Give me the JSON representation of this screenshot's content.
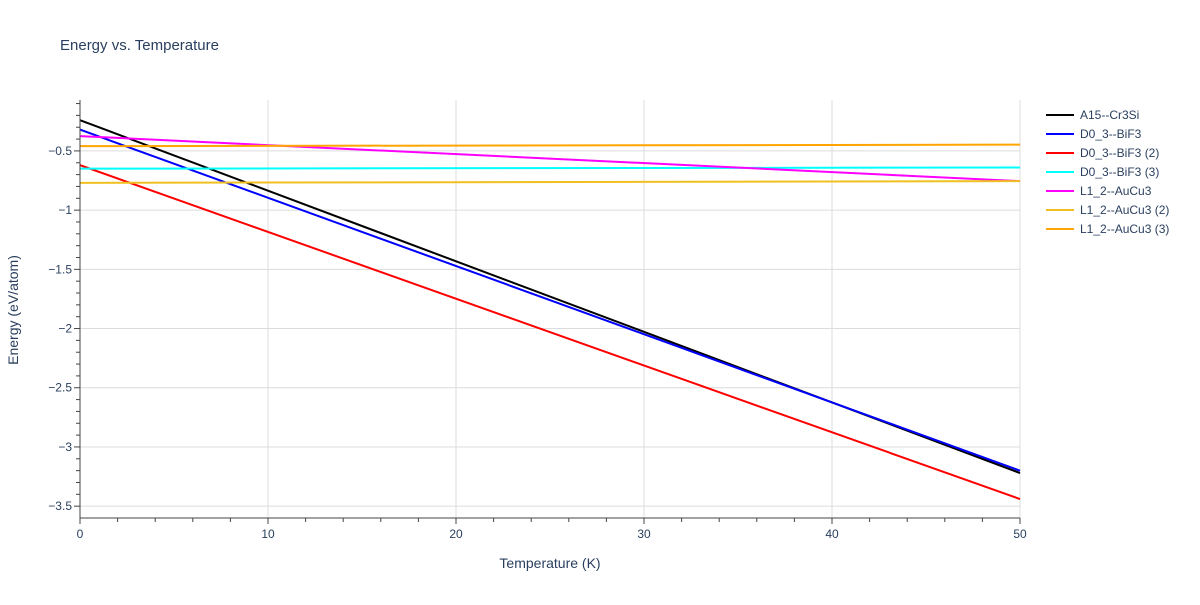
{
  "chart_data": {
    "type": "line",
    "title": "Energy vs. Temperature",
    "xlabel": "Temperature (K)",
    "ylabel": "Energy (eV/atom)",
    "xlim": [
      0,
      50
    ],
    "ylim": [
      -3.6,
      -0.07
    ],
    "xticks": [
      0,
      10,
      20,
      30,
      40,
      50
    ],
    "yticks": [
      -0.5,
      -1,
      -1.5,
      -2,
      -2.5,
      -3,
      -3.5
    ],
    "ytick_labels": [
      "−0.5",
      "−1",
      "−1.5",
      "−2",
      "−2.5",
      "−3",
      "−3.5"
    ],
    "grid": true,
    "legend_position": "right",
    "series": [
      {
        "name": "A15--Cr3Si",
        "color": "#000000",
        "x": [
          0,
          50
        ],
        "y": [
          -0.24,
          -3.22
        ]
      },
      {
        "name": "D0_3--BiF3",
        "color": "#0000ff",
        "x": [
          0,
          50
        ],
        "y": [
          -0.32,
          -3.2
        ]
      },
      {
        "name": "D0_3--BiF3 (2)",
        "color": "#ff0000",
        "x": [
          0,
          50
        ],
        "y": [
          -0.62,
          -3.44
        ]
      },
      {
        "name": "D0_3--BiF3 (3)",
        "color": "#00ffff",
        "x": [
          0,
          50
        ],
        "y": [
          -0.65,
          -0.64
        ]
      },
      {
        "name": "L1_2--AuCu3",
        "color": "#ff00ff",
        "x": [
          0,
          50
        ],
        "y": [
          -0.375,
          -0.755
        ]
      },
      {
        "name": "L1_2--AuCu3 (2)",
        "color": "#f0c020",
        "x": [
          0,
          50
        ],
        "y": [
          -0.77,
          -0.755
        ]
      },
      {
        "name": "L1_2--AuCu3 (3)",
        "color": "#ffa500",
        "x": [
          0,
          50
        ],
        "y": [
          -0.46,
          -0.447
        ]
      }
    ]
  }
}
